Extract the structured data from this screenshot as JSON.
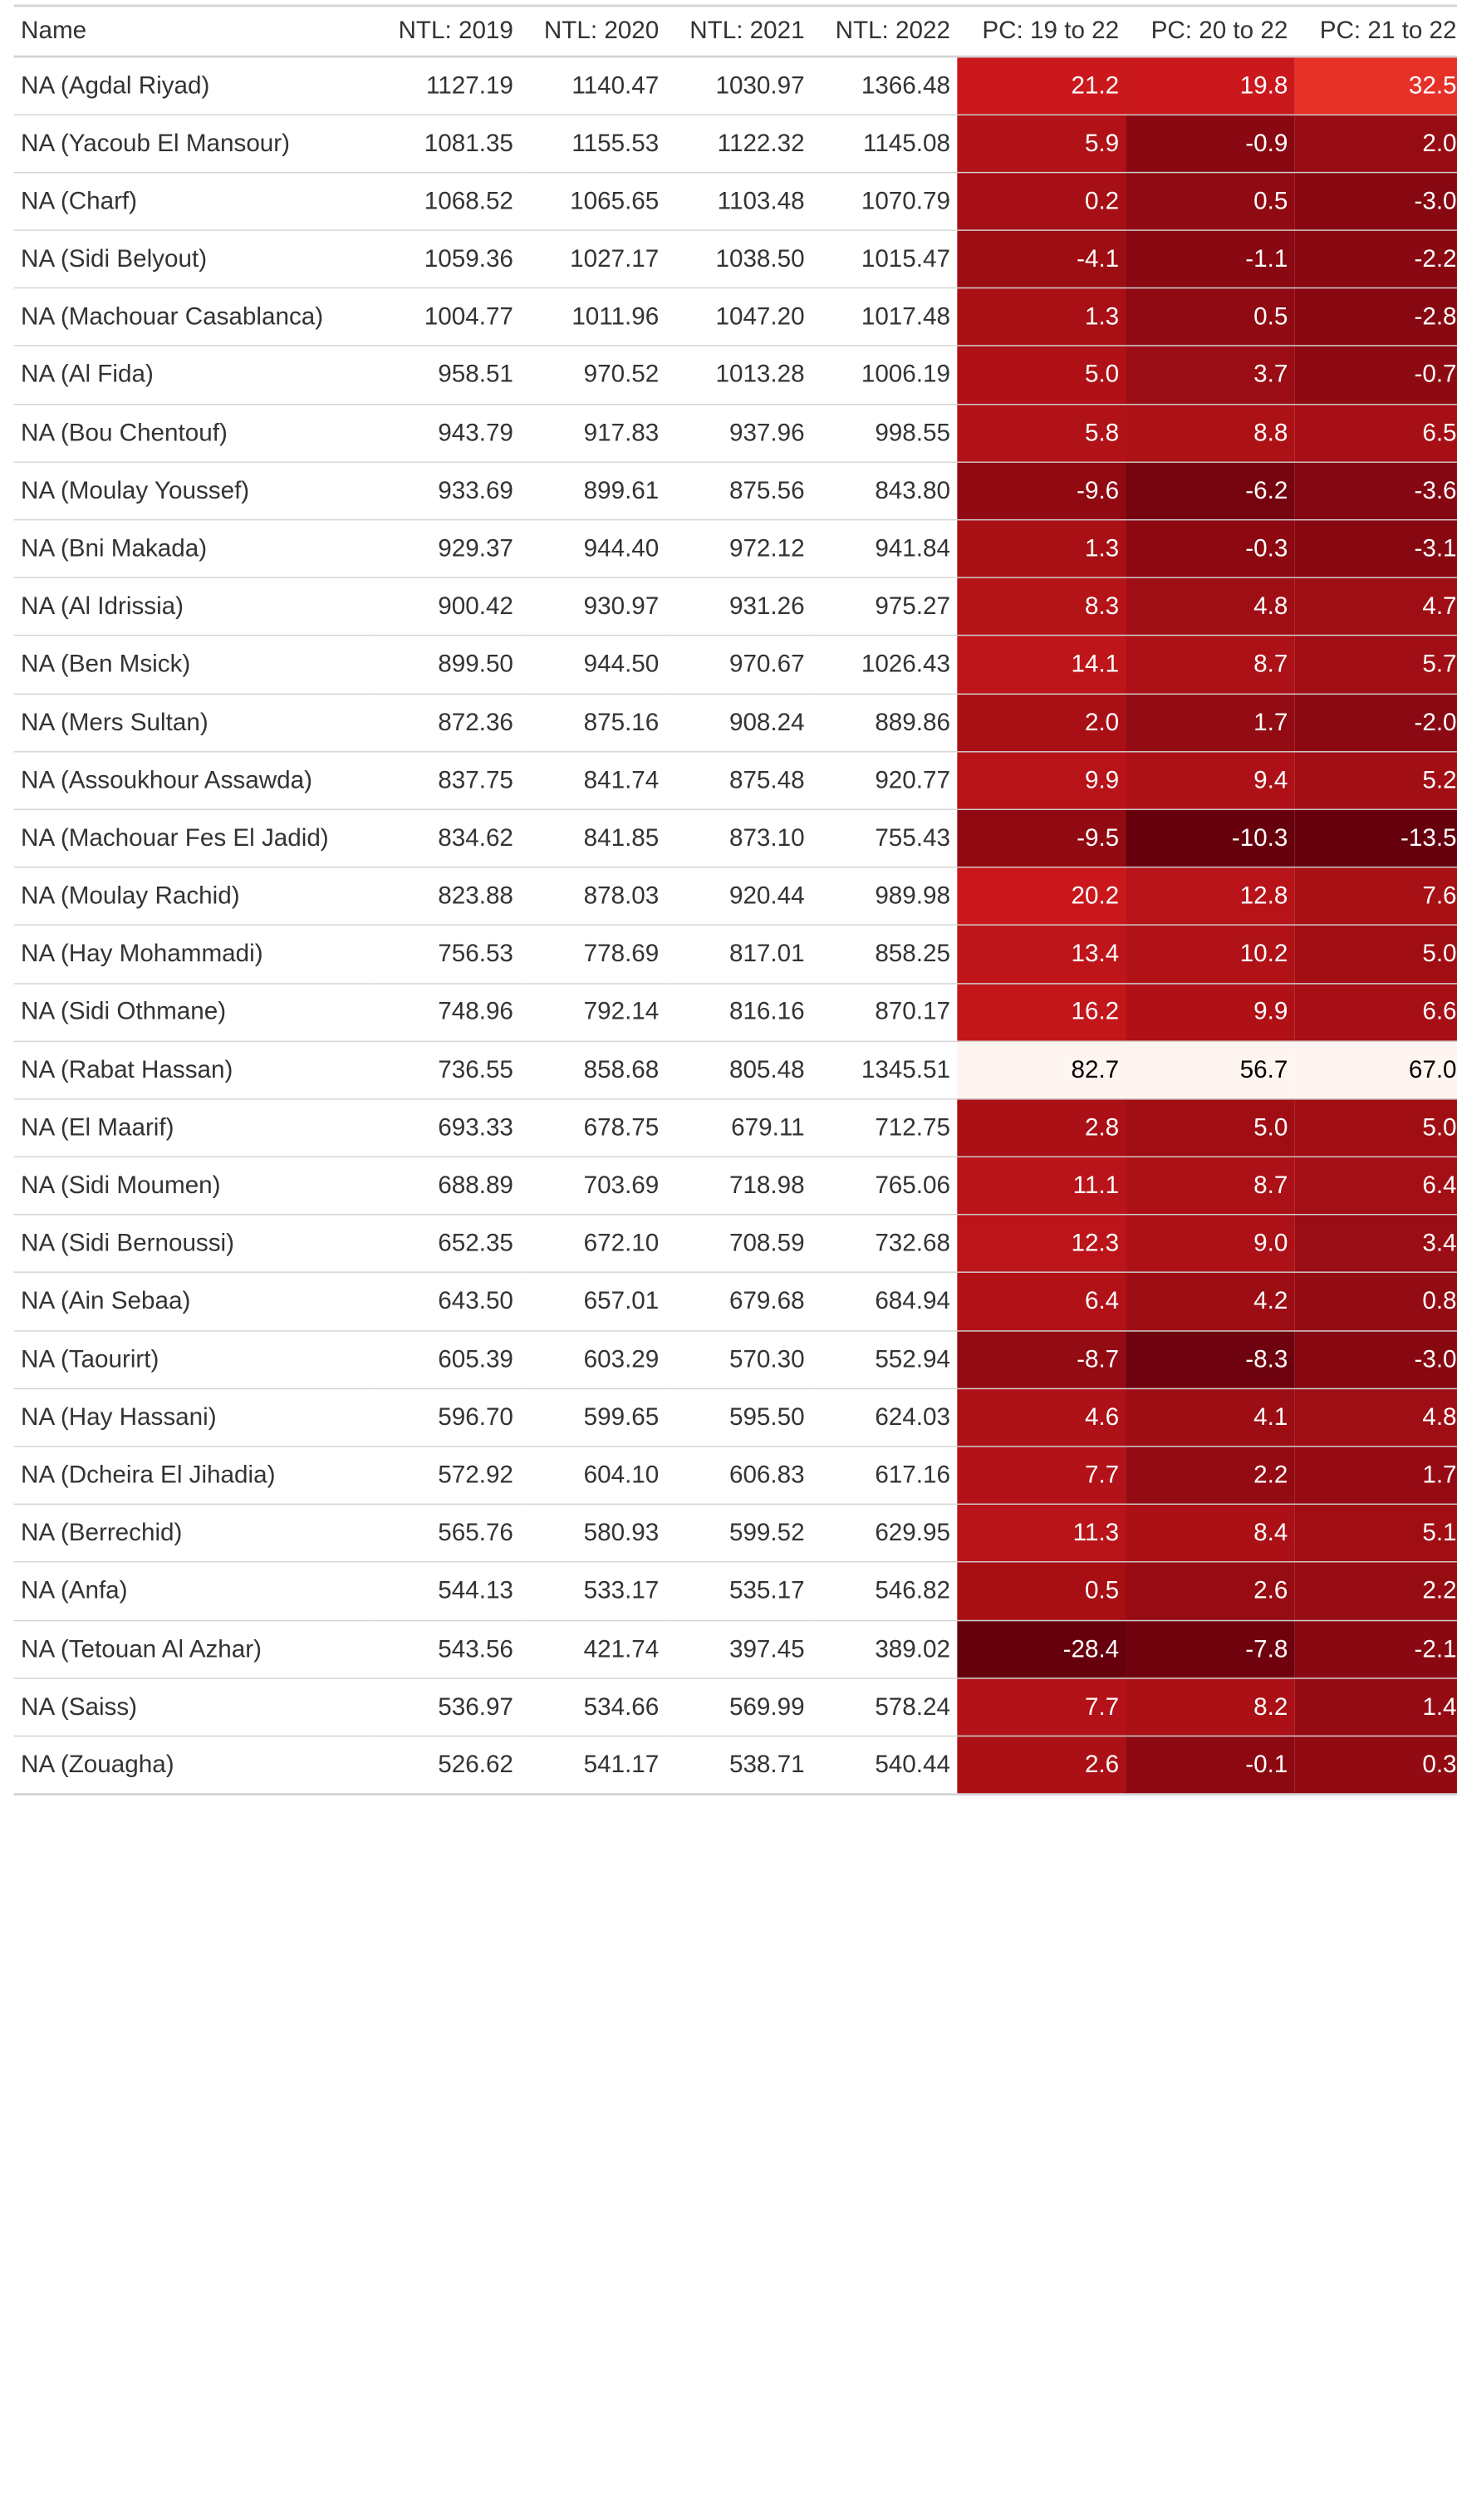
{
  "table": {
    "columns": [
      "Name",
      "NTL: 2019",
      "NTL: 2020",
      "NTL: 2021",
      "NTL: 2022",
      "PC: 19 to 22",
      "PC: 20 to 22",
      "PC: 21 to 22"
    ],
    "rows": [
      [
        "NA (Agdal Riyad)",
        "1127.19",
        "1140.47",
        "1030.97",
        "1366.48",
        "21.2",
        "19.8",
        "32.5"
      ],
      [
        "NA (Yacoub El Mansour)",
        "1081.35",
        "1155.53",
        "1122.32",
        "1145.08",
        "5.9",
        "-0.9",
        "2.0"
      ],
      [
        "NA (Charf)",
        "1068.52",
        "1065.65",
        "1103.48",
        "1070.79",
        "0.2",
        "0.5",
        "-3.0"
      ],
      [
        "NA (Sidi Belyout)",
        "1059.36",
        "1027.17",
        "1038.50",
        "1015.47",
        "-4.1",
        "-1.1",
        "-2.2"
      ],
      [
        "NA (Machouar Casablanca)",
        "1004.77",
        "1011.96",
        "1047.20",
        "1017.48",
        "1.3",
        "0.5",
        "-2.8"
      ],
      [
        "NA (Al Fida)",
        "958.51",
        "970.52",
        "1013.28",
        "1006.19",
        "5.0",
        "3.7",
        "-0.7"
      ],
      [
        "NA (Bou Chentouf)",
        "943.79",
        "917.83",
        "937.96",
        "998.55",
        "5.8",
        "8.8",
        "6.5"
      ],
      [
        "NA (Moulay Youssef)",
        "933.69",
        "899.61",
        "875.56",
        "843.80",
        "-9.6",
        "-6.2",
        "-3.6"
      ],
      [
        "NA (Bni Makada)",
        "929.37",
        "944.40",
        "972.12",
        "941.84",
        "1.3",
        "-0.3",
        "-3.1"
      ],
      [
        "NA (Al Idrissia)",
        "900.42",
        "930.97",
        "931.26",
        "975.27",
        "8.3",
        "4.8",
        "4.7"
      ],
      [
        "NA (Ben Msick)",
        "899.50",
        "944.50",
        "970.67",
        "1026.43",
        "14.1",
        "8.7",
        "5.7"
      ],
      [
        "NA (Mers Sultan)",
        "872.36",
        "875.16",
        "908.24",
        "889.86",
        "2.0",
        "1.7",
        "-2.0"
      ],
      [
        "NA (Assoukhour Assawda)",
        "837.75",
        "841.74",
        "875.48",
        "920.77",
        "9.9",
        "9.4",
        "5.2"
      ],
      [
        "NA (Machouar Fes El Jadid)",
        "834.62",
        "841.85",
        "873.10",
        "755.43",
        "-9.5",
        "-10.3",
        "-13.5"
      ],
      [
        "NA (Moulay Rachid)",
        "823.88",
        "878.03",
        "920.44",
        "989.98",
        "20.2",
        "12.8",
        "7.6"
      ],
      [
        "NA (Hay Mohammadi)",
        "756.53",
        "778.69",
        "817.01",
        "858.25",
        "13.4",
        "10.2",
        "5.0"
      ],
      [
        "NA (Sidi Othmane)",
        "748.96",
        "792.14",
        "816.16",
        "870.17",
        "16.2",
        "9.9",
        "6.6"
      ],
      [
        "NA (Rabat Hassan)",
        "736.55",
        "858.68",
        "805.48",
        "1345.51",
        "82.7",
        "56.7",
        "67.0"
      ],
      [
        "NA (El Maarif)",
        "693.33",
        "678.75",
        "679.11",
        "712.75",
        "2.8",
        "5.0",
        "5.0"
      ],
      [
        "NA (Sidi Moumen)",
        "688.89",
        "703.69",
        "718.98",
        "765.06",
        "11.1",
        "8.7",
        "6.4"
      ],
      [
        "NA (Sidi Bernoussi)",
        "652.35",
        "672.10",
        "708.59",
        "732.68",
        "12.3",
        "9.0",
        "3.4"
      ],
      [
        "NA (Ain Sebaa)",
        "643.50",
        "657.01",
        "679.68",
        "684.94",
        "6.4",
        "4.2",
        "0.8"
      ],
      [
        "NA (Taourirt)",
        "605.39",
        "603.29",
        "570.30",
        "552.94",
        "-8.7",
        "-8.3",
        "-3.0"
      ],
      [
        "NA (Hay Hassani)",
        "596.70",
        "599.65",
        "595.50",
        "624.03",
        "4.6",
        "4.1",
        "4.8"
      ],
      [
        "NA (Dcheira El Jihadia)",
        "572.92",
        "604.10",
        "606.83",
        "617.16",
        "7.7",
        "2.2",
        "1.7"
      ],
      [
        "NA (Berrechid)",
        "565.76",
        "580.93",
        "599.52",
        "629.95",
        "11.3",
        "8.4",
        "5.1"
      ],
      [
        "NA (Anfa)",
        "544.13",
        "533.17",
        "535.17",
        "546.82",
        "0.5",
        "2.6",
        "2.2"
      ],
      [
        "NA (Tetouan Al Azhar)",
        "543.56",
        "421.74",
        "397.45",
        "389.02",
        "-28.4",
        "-7.8",
        "-2.1"
      ],
      [
        "NA (Saiss)",
        "536.97",
        "534.66",
        "569.99",
        "578.24",
        "7.7",
        "8.2",
        "1.4"
      ],
      [
        "NA (Zouagha)",
        "526.62",
        "541.17",
        "538.71",
        "540.44",
        "2.6",
        "-0.1",
        "0.3"
      ]
    ]
  }
}
